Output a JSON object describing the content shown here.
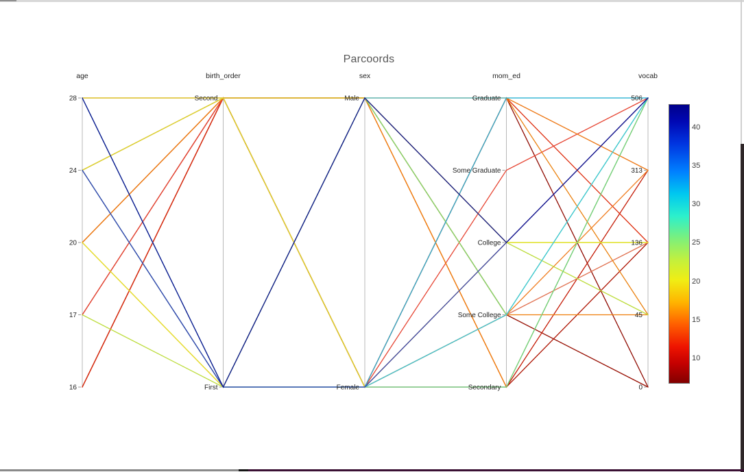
{
  "title": "Parcoords",
  "chart_data": {
    "type": "parallel-coordinates",
    "title": "Parcoords",
    "axes": [
      {
        "name": "age",
        "categories": [
          "28",
          "24",
          "20",
          "17",
          "16"
        ]
      },
      {
        "name": "birth_order",
        "categories": [
          "Second",
          "First"
        ]
      },
      {
        "name": "sex",
        "categories": [
          "Male",
          "Female"
        ]
      },
      {
        "name": "mom_ed",
        "categories": [
          "Graduate",
          "Some Graduate",
          "College",
          "Some College",
          "Secondary"
        ]
      },
      {
        "name": "vocab",
        "categories": [
          "506",
          "313",
          "136",
          "45",
          "0"
        ]
      }
    ],
    "rows": [
      {
        "age": "16",
        "birth_order": "Second",
        "sex": "Female",
        "mom_ed": "Graduate",
        "vocab": "0",
        "value": 8,
        "color": "#8f0a00"
      },
      {
        "age": "16",
        "birth_order": "Second",
        "sex": "Male",
        "mom_ed": "Some College",
        "vocab": "0",
        "value": 8,
        "color": "#960d00"
      },
      {
        "age": "17",
        "birth_order": "Second",
        "sex": "Female",
        "mom_ed": "Secondary",
        "vocab": "136",
        "value": 9,
        "color": "#ad1200"
      },
      {
        "age": "20",
        "birth_order": "Second",
        "sex": "Male",
        "mom_ed": "Secondary",
        "vocab": "313",
        "value": 10,
        "color": "#c41a05"
      },
      {
        "age": "16",
        "birth_order": "Second",
        "sex": "Female",
        "mom_ed": "Graduate",
        "vocab": "136",
        "value": 12,
        "color": "#de2d0e"
      },
      {
        "age": "17",
        "birth_order": "Second",
        "sex": "Female",
        "mom_ed": "Some Graduate",
        "vocab": "506",
        "value": 12,
        "color": "#e64533"
      },
      {
        "age": "24",
        "birth_order": "Second",
        "sex": "Female",
        "mom_ed": "Some College",
        "vocab": "136",
        "value": 14,
        "color": "#e0704f"
      },
      {
        "age": "28",
        "birth_order": "Second",
        "sex": "Male",
        "mom_ed": "Graduate",
        "vocab": "313",
        "value": 16,
        "color": "#ed7612"
      },
      {
        "age": "24",
        "birth_order": "Second",
        "sex": "Male",
        "mom_ed": "Graduate",
        "vocab": "45",
        "value": 16,
        "color": "#ea810f"
      },
      {
        "age": "28",
        "birth_order": "Second",
        "sex": "Male",
        "mom_ed": "Some College",
        "vocab": "313",
        "value": 15,
        "color": "#f07c1e"
      },
      {
        "age": "20",
        "birth_order": "Second",
        "sex": "Female",
        "mom_ed": "Some College",
        "vocab": "45",
        "value": 16,
        "color": "#ee7d0a"
      },
      {
        "age": "20",
        "birth_order": "First",
        "sex": "Male",
        "mom_ed": "Secondary",
        "vocab": "506",
        "value": 15,
        "color": "#f2830c"
      },
      {
        "age": "28",
        "birth_order": "Second",
        "sex": "Male",
        "mom_ed": "College",
        "vocab": "136",
        "value": 20,
        "color": "#d9d435"
      },
      {
        "age": "24",
        "birth_order": "Second",
        "sex": "Female",
        "mom_ed": "College",
        "vocab": "136",
        "value": 21,
        "color": "#d8da2e"
      },
      {
        "age": "20",
        "birth_order": "First",
        "sex": "Female",
        "mom_ed": "College",
        "vocab": "136",
        "value": 20,
        "color": "#e3e42c"
      },
      {
        "age": "17",
        "birth_order": "First",
        "sex": "Male",
        "mom_ed": "College",
        "vocab": "45",
        "value": 23,
        "color": "#bcdc3a"
      },
      {
        "age": "24",
        "birth_order": "First",
        "sex": "Male",
        "mom_ed": "Some College",
        "vocab": "506",
        "value": 25,
        "color": "#7edc6f"
      },
      {
        "age": "24",
        "birth_order": "First",
        "sex": "Female",
        "mom_ed": "Secondary",
        "vocab": "506",
        "value": 26,
        "color": "#67d784"
      },
      {
        "age": "24",
        "birth_order": "First",
        "sex": "Female",
        "mom_ed": "Some College",
        "vocab": "506",
        "value": 30,
        "color": "#3cc6d8"
      },
      {
        "age": "28",
        "birth_order": "First",
        "sex": "Male",
        "mom_ed": "Graduate",
        "vocab": "506",
        "value": 30,
        "color": "#45c5dc"
      },
      {
        "age": "28",
        "birth_order": "First",
        "sex": "Female",
        "mom_ed": "Graduate",
        "vocab": "506",
        "value": 31,
        "color": "#2fb3d2"
      },
      {
        "age": "24",
        "birth_order": "First",
        "sex": "Female",
        "mom_ed": "College",
        "vocab": "506",
        "value": 38,
        "color": "#3a3fb0"
      },
      {
        "age": "28",
        "birth_order": "First",
        "sex": "Male",
        "mom_ed": "College",
        "vocab": "506",
        "value": 42,
        "color": "#14148c"
      }
    ],
    "colorbar": {
      "ticks": [
        40,
        35,
        30,
        25,
        20,
        15,
        10
      ],
      "vmin": 7,
      "vmax": 43,
      "colormap": "jet (high values = dark blue, low values = dark red)"
    },
    "layout_hints": {
      "axis_order": [
        "age",
        "birth_order",
        "sex",
        "mom_ed",
        "vocab"
      ],
      "category_spacing": "uniform per axis, top to bottom",
      "legend_position": "right colorbar"
    }
  }
}
